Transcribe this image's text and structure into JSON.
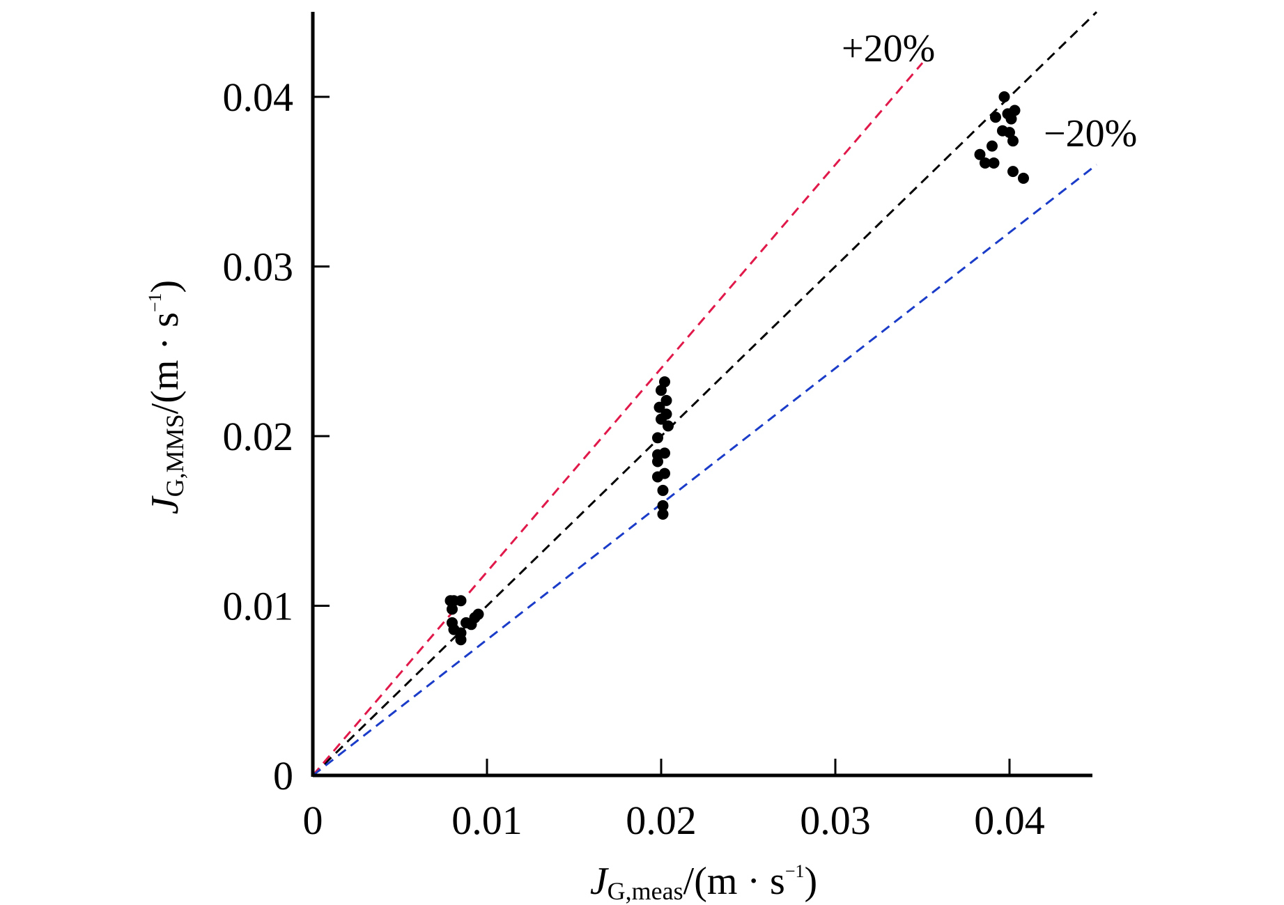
{
  "chart_data": {
    "type": "scatter",
    "xlabel": {
      "main": "J",
      "sub": "G,meas",
      "unit_open": "/(m · s",
      "sup": "−1",
      "unit_close": ")"
    },
    "ylabel": {
      "main": "J",
      "sub": "G,MMS",
      "unit_open": "/(m · s",
      "sup": "−1",
      "unit_close": ")"
    },
    "xlim": [
      0,
      0.045
    ],
    "ylim": [
      0,
      0.045
    ],
    "x_ticks": [
      0,
      0.01,
      0.02,
      0.03,
      0.04
    ],
    "x_tick_labels": [
      "0",
      "0.01",
      "0.02",
      "0.03",
      "0.04"
    ],
    "y_ticks": [
      0,
      0.01,
      0.02,
      0.03,
      0.04
    ],
    "y_tick_labels": [
      "0",
      "0.01",
      "0.02",
      "0.03",
      "0.04"
    ],
    "grid": false,
    "reference_lines": [
      {
        "name": "parity",
        "slope": 1.0,
        "x_end": 0.045,
        "color": "#000000",
        "label": ""
      },
      {
        "name": "plus-20",
        "slope": 1.2,
        "x_end": 0.035,
        "color": "#e0194a",
        "label": "+20%"
      },
      {
        "name": "minus-20",
        "slope": 0.8,
        "x_end": 0.045,
        "color": "#1a3cc8",
        "label": "−20%"
      }
    ],
    "series": [
      {
        "name": "data",
        "color": "#000000",
        "points": [
          [
            0.0079,
            0.0103
          ],
          [
            0.0081,
            0.0103
          ],
          [
            0.0085,
            0.0103
          ],
          [
            0.008,
            0.0098
          ],
          [
            0.008,
            0.009
          ],
          [
            0.0081,
            0.0086
          ],
          [
            0.0085,
            0.0084
          ],
          [
            0.0085,
            0.008
          ],
          [
            0.0088,
            0.009
          ],
          [
            0.0091,
            0.0089
          ],
          [
            0.0093,
            0.0093
          ],
          [
            0.0095,
            0.0095
          ],
          [
            0.0202,
            0.0232
          ],
          [
            0.02,
            0.0227
          ],
          [
            0.0203,
            0.0221
          ],
          [
            0.0199,
            0.0217
          ],
          [
            0.0203,
            0.0213
          ],
          [
            0.02,
            0.021
          ],
          [
            0.0204,
            0.0206
          ],
          [
            0.0198,
            0.0199
          ],
          [
            0.0198,
            0.0189
          ],
          [
            0.0202,
            0.019
          ],
          [
            0.0198,
            0.0185
          ],
          [
            0.0198,
            0.0176
          ],
          [
            0.0202,
            0.0178
          ],
          [
            0.0201,
            0.0168
          ],
          [
            0.0201,
            0.0159
          ],
          [
            0.0201,
            0.0154
          ],
          [
            0.0397,
            0.04
          ],
          [
            0.0392,
            0.0388
          ],
          [
            0.0399,
            0.039
          ],
          [
            0.0403,
            0.0392
          ],
          [
            0.0401,
            0.0387
          ],
          [
            0.0396,
            0.038
          ],
          [
            0.04,
            0.0379
          ],
          [
            0.0402,
            0.0374
          ],
          [
            0.039,
            0.0371
          ],
          [
            0.0383,
            0.0366
          ],
          [
            0.0386,
            0.0361
          ],
          [
            0.0391,
            0.0361
          ],
          [
            0.0402,
            0.0356
          ],
          [
            0.0408,
            0.0352
          ]
        ]
      }
    ]
  }
}
